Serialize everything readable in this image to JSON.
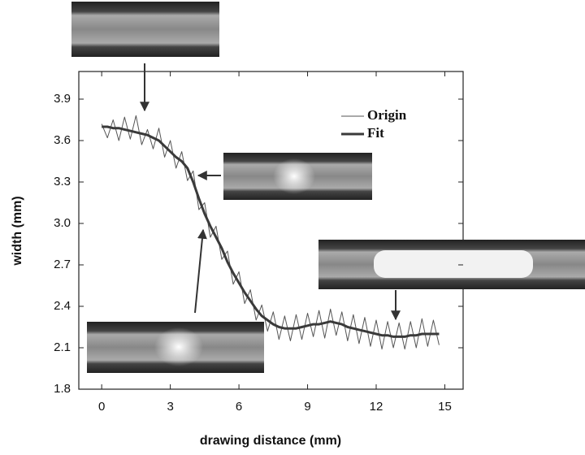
{
  "chart_data": {
    "type": "line",
    "x_label": "drawing distance (mm)",
    "y_label": "width (mm)",
    "x": [
      0,
      0.25,
      0.5,
      0.75,
      1,
      1.25,
      1.5,
      1.75,
      2,
      2.25,
      2.5,
      2.75,
      3,
      3.25,
      3.5,
      3.75,
      4,
      4.25,
      4.5,
      4.75,
      5,
      5.25,
      5.5,
      5.75,
      6,
      6.25,
      6.5,
      6.75,
      7,
      7.25,
      7.5,
      7.75,
      8,
      8.25,
      8.5,
      8.75,
      9,
      9.25,
      9.5,
      9.75,
      10,
      10.25,
      10.5,
      10.75,
      11,
      11.25,
      11.5,
      11.75,
      12,
      12.25,
      12.5,
      12.75,
      13,
      13.25,
      13.5,
      13.75,
      14,
      14.25,
      14.5,
      14.75
    ],
    "series": [
      {
        "name": "Origin",
        "color": "#555555",
        "values": [
          3.72,
          3.62,
          3.75,
          3.6,
          3.77,
          3.61,
          3.78,
          3.57,
          3.68,
          3.54,
          3.69,
          3.48,
          3.6,
          3.4,
          3.52,
          3.31,
          3.38,
          3.1,
          3.15,
          2.9,
          2.98,
          2.74,
          2.8,
          2.56,
          2.65,
          2.42,
          2.52,
          2.3,
          2.41,
          2.22,
          2.36,
          2.16,
          2.33,
          2.15,
          2.34,
          2.16,
          2.35,
          2.18,
          2.37,
          2.17,
          2.38,
          2.19,
          2.36,
          2.15,
          2.34,
          2.13,
          2.32,
          2.11,
          2.3,
          2.09,
          2.29,
          2.1,
          2.28,
          2.09,
          2.29,
          2.1,
          2.31,
          2.11,
          2.3,
          2.12
        ]
      },
      {
        "name": "Fit",
        "color": "#3a3a3a",
        "values": [
          3.7,
          3.7,
          3.69,
          3.69,
          3.68,
          3.67,
          3.66,
          3.65,
          3.64,
          3.62,
          3.6,
          3.56,
          3.52,
          3.48,
          3.45,
          3.4,
          3.3,
          3.18,
          3.07,
          2.98,
          2.9,
          2.82,
          2.72,
          2.64,
          2.57,
          2.5,
          2.44,
          2.38,
          2.33,
          2.3,
          2.27,
          2.25,
          2.24,
          2.24,
          2.24,
          2.25,
          2.26,
          2.27,
          2.27,
          2.28,
          2.29,
          2.28,
          2.27,
          2.25,
          2.24,
          2.23,
          2.22,
          2.21,
          2.2,
          2.19,
          2.19,
          2.18,
          2.18,
          2.18,
          2.19,
          2.19,
          2.2,
          2.2,
          2.2,
          2.2
        ]
      }
    ],
    "xlim": [
      -1,
      15.8
    ],
    "ylim": [
      1.8,
      4.1
    ],
    "xticks": [
      0,
      3,
      6,
      9,
      12,
      15
    ],
    "yticks": [
      1.8,
      2.1,
      2.4,
      2.7,
      {
        "value": 3,
        "label": "3.0"
      },
      3.3,
      3.6,
      3.9
    ],
    "legend": "upper right"
  }
}
